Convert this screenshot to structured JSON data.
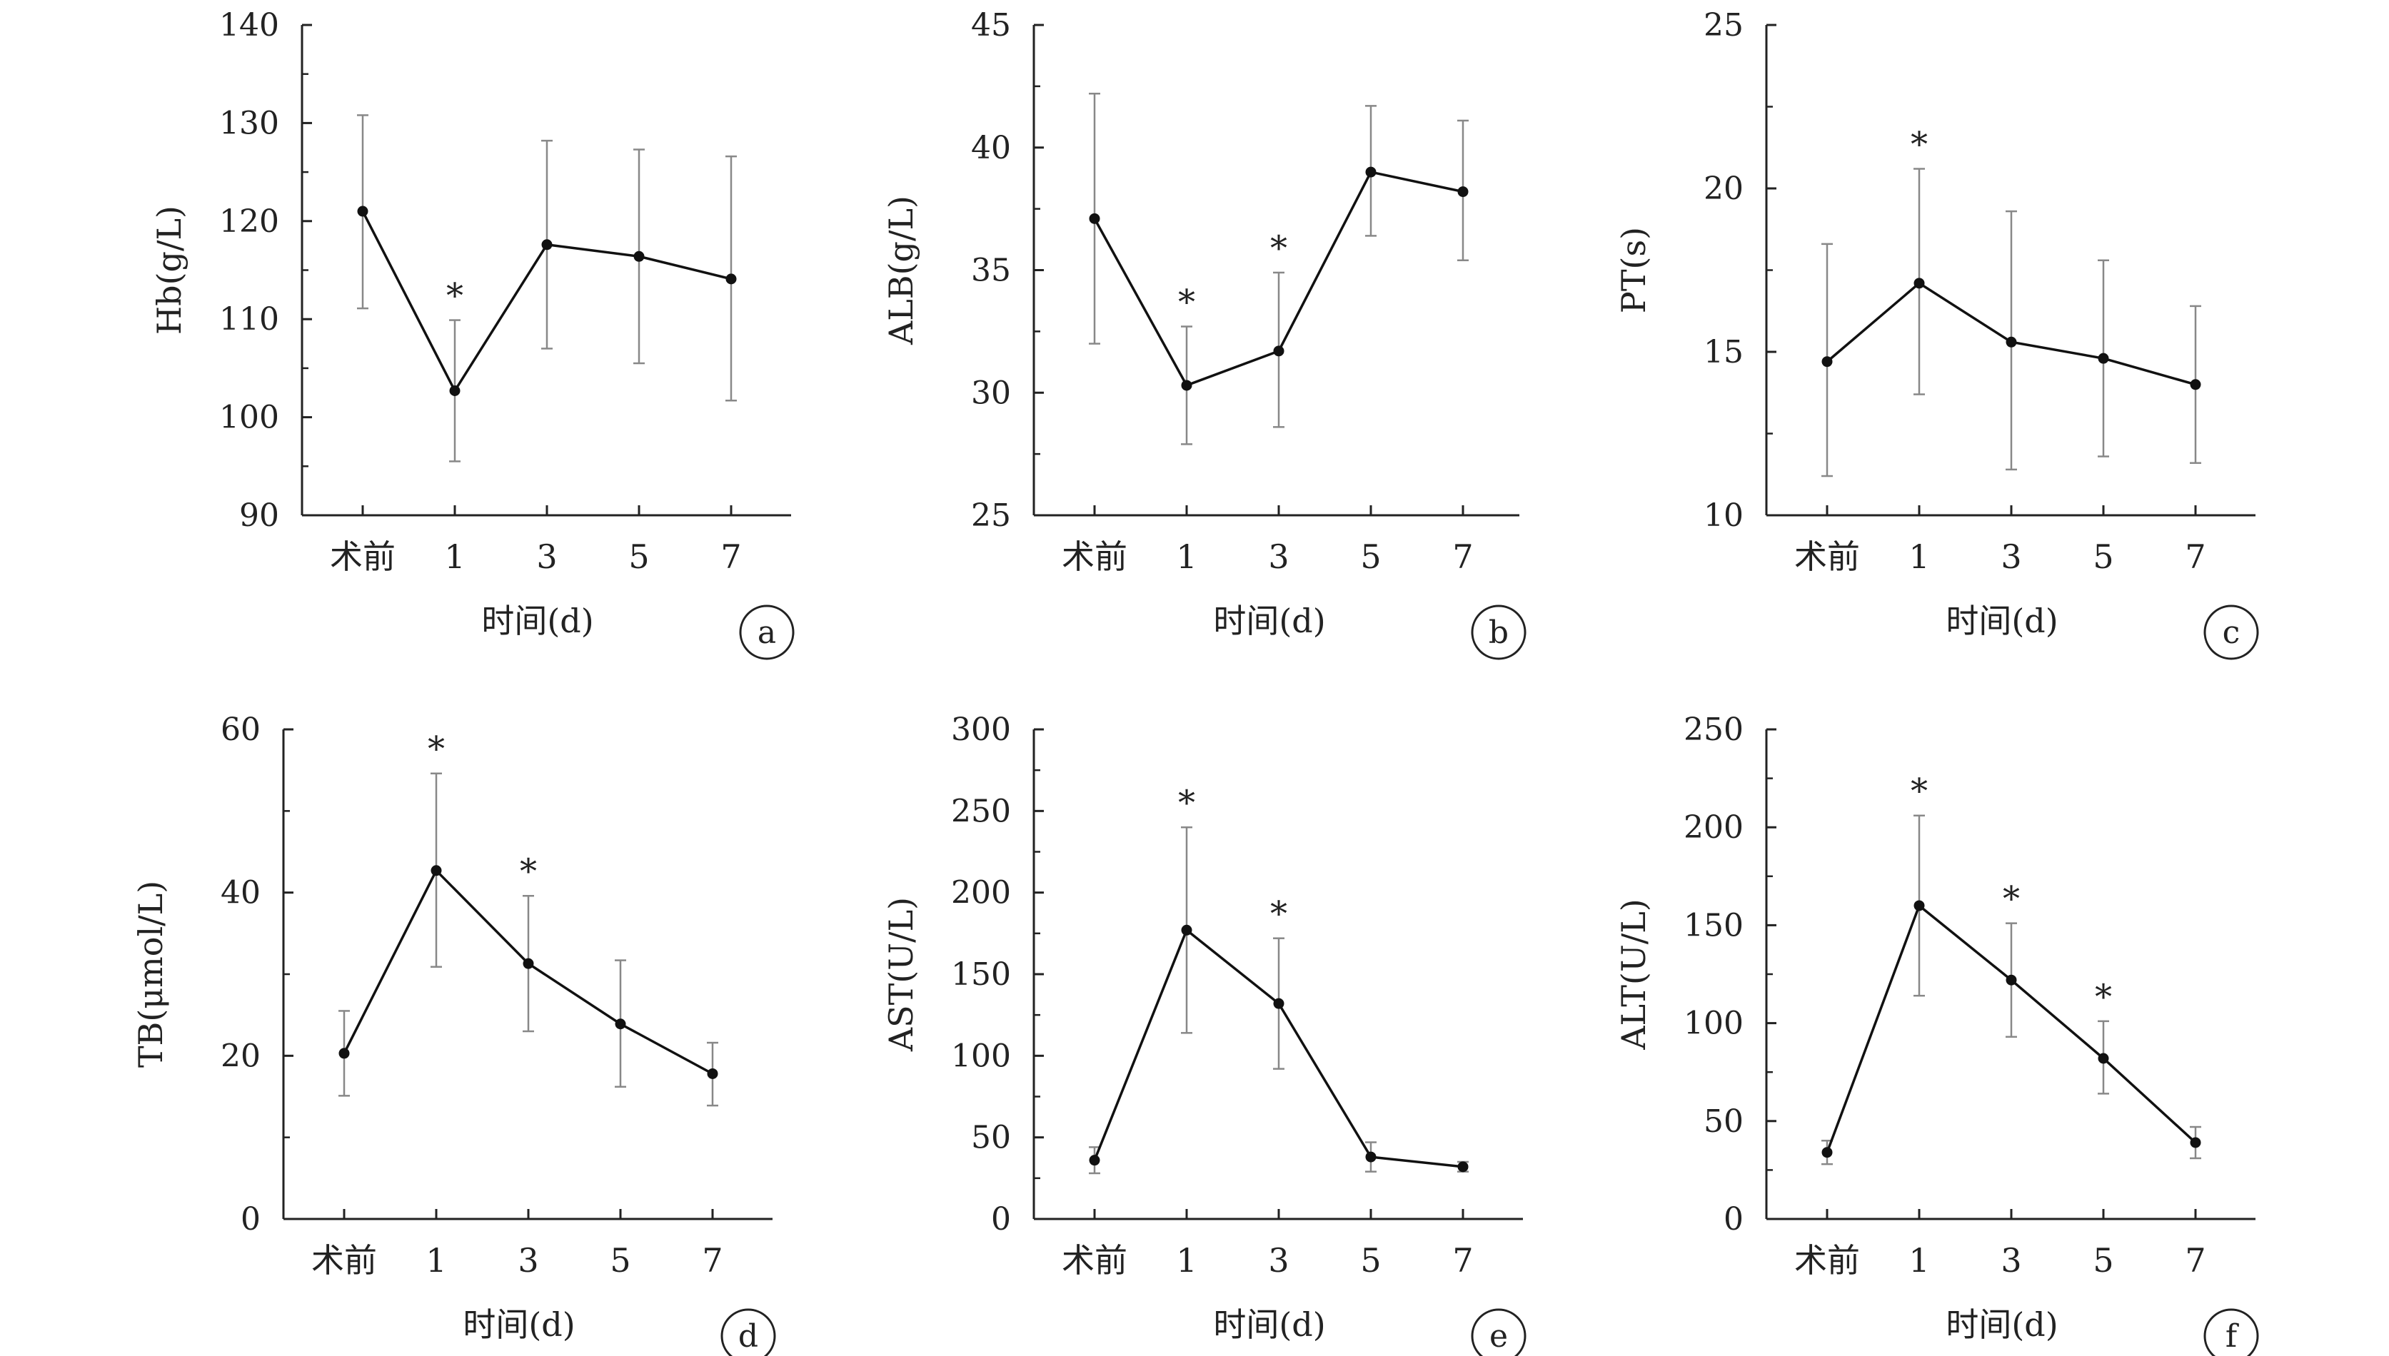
{
  "chart_data": [
    {
      "type": "line",
      "panel_letter": "a",
      "ylabel": "Hb(g/L)",
      "xlabel": "时间(d)",
      "categories": [
        "术前",
        "1",
        "3",
        "5",
        "7"
      ],
      "yticks": [
        "90",
        "100",
        "110",
        "120",
        "130",
        "140"
      ],
      "ylim": [
        90,
        140
      ],
      "values": [
        121,
        102.7,
        117.6,
        116.4,
        114.1
      ],
      "errors_upper": [
        130.8,
        109.9,
        128.2,
        127.3,
        126.6
      ],
      "errors_lower": [
        111.1,
        95.5,
        107,
        105.5,
        101.7
      ],
      "significant": [
        false,
        true,
        false,
        false,
        false
      ],
      "significance_mark": "*",
      "grid": false
    },
    {
      "type": "line",
      "panel_letter": "b",
      "ylabel": "ALB(g/L)",
      "xlabel": "时间(d)",
      "categories": [
        "术前",
        "1",
        "3",
        "5",
        "7"
      ],
      "yticks": [
        "25",
        "30",
        "35",
        "40",
        "45"
      ],
      "ylim": [
        25,
        45
      ],
      "values": [
        37.1,
        30.3,
        31.7,
        39,
        38.2
      ],
      "errors_upper": [
        42.2,
        32.7,
        34.9,
        41.7,
        41.1
      ],
      "errors_lower": [
        32,
        27.9,
        28.6,
        36.4,
        35.4
      ],
      "significant": [
        false,
        true,
        true,
        false,
        false
      ],
      "significance_mark": "*",
      "grid": false
    },
    {
      "type": "line",
      "panel_letter": "c",
      "ylabel": "PT(s)",
      "xlabel": "时间(d)",
      "categories": [
        "术前",
        "1",
        "3",
        "5",
        "7"
      ],
      "yticks": [
        "10",
        "15",
        "20",
        "25"
      ],
      "ylim": [
        10,
        25
      ],
      "values": [
        14.7,
        17.1,
        15.3,
        14.8,
        14
      ],
      "errors_upper": [
        18.3,
        20.6,
        19.3,
        17.8,
        16.4
      ],
      "errors_lower": [
        11.2,
        13.7,
        11.4,
        11.8,
        11.6
      ],
      "significant": [
        false,
        true,
        false,
        false,
        false
      ],
      "significance_mark": "*",
      "grid": false
    },
    {
      "type": "line",
      "panel_letter": "d",
      "ylabel": "TB(μmol/L)",
      "xlabel": "时间(d)",
      "categories": [
        "术前",
        "1",
        "3",
        "5",
        "7"
      ],
      "yticks": [
        "0",
        "20",
        "40",
        "60"
      ],
      "ylim": [
        0,
        60
      ],
      "values": [
        20.3,
        42.7,
        31.3,
        23.9,
        17.8
      ],
      "errors_upper": [
        25.5,
        54.6,
        39.6,
        31.7,
        21.6
      ],
      "errors_lower": [
        15.1,
        30.9,
        23,
        16.2,
        13.9
      ],
      "significant": [
        false,
        true,
        true,
        false,
        false
      ],
      "significance_mark": "*",
      "grid": false
    },
    {
      "type": "line",
      "panel_letter": "e",
      "ylabel": "AST(U/L)",
      "xlabel": "时间(d)",
      "categories": [
        "术前",
        "1",
        "3",
        "5",
        "7"
      ],
      "yticks": [
        "0",
        "50",
        "100",
        "150",
        "200",
        "250",
        "300"
      ],
      "ylim": [
        0,
        300
      ],
      "values": [
        36,
        177,
        132,
        38,
        32
      ],
      "errors_upper": [
        44,
        240,
        172,
        47,
        35
      ],
      "errors_lower": [
        28,
        114,
        92,
        29,
        29
      ],
      "significant": [
        false,
        true,
        true,
        false,
        false
      ],
      "significance_mark": "*",
      "grid": false
    },
    {
      "type": "line",
      "panel_letter": "f",
      "ylabel": "ALT(U/L)",
      "xlabel": "时间(d)",
      "categories": [
        "术前",
        "1",
        "3",
        "5",
        "7"
      ],
      "yticks": [
        "0",
        "50",
        "100",
        "150",
        "200",
        "250"
      ],
      "ylim": [
        0,
        250
      ],
      "values": [
        34,
        160,
        122,
        82,
        39
      ],
      "errors_upper": [
        40,
        206,
        151,
        101,
        47
      ],
      "errors_lower": [
        28,
        114,
        93,
        64,
        31
      ],
      "significant": [
        false,
        true,
        true,
        true,
        false
      ],
      "significance_mark": "*",
      "grid": false
    }
  ]
}
